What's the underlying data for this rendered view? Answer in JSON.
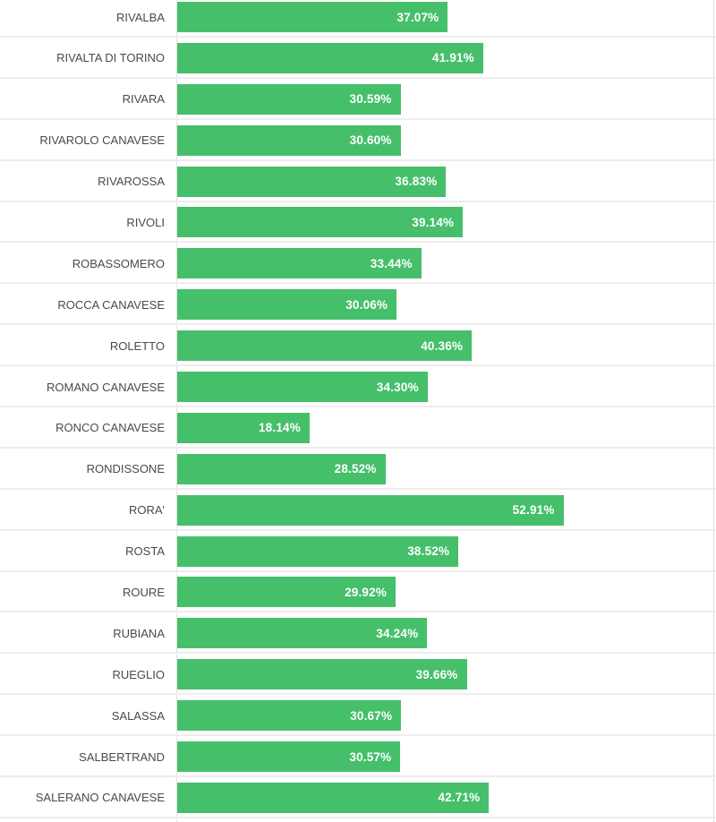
{
  "chart_data": {
    "type": "bar",
    "orientation": "horizontal",
    "title": "",
    "xlabel": "",
    "ylabel": "",
    "legend": "none",
    "grid": "row-separators",
    "xmax_estimate": 73.8,
    "bar_color": "#46BF6B",
    "value_label_color": "#ffffff",
    "category_label_color": "#4a4a4a",
    "separator_color": "#ededed",
    "categories": [
      "RIVALBA",
      "RIVALTA DI TORINO",
      "RIVARA",
      "RIVAROLO CANAVESE",
      "RIVAROSSA",
      "RIVOLI",
      "ROBASSOMERO",
      "ROCCA CANAVESE",
      "ROLETTO",
      "ROMANO CANAVESE",
      "RONCO CANAVESE",
      "RONDISSONE",
      "RORA'",
      "ROSTA",
      "ROURE",
      "RUBIANA",
      "RUEGLIO",
      "SALASSA",
      "SALBERTRAND",
      "SALERANO CANAVESE"
    ],
    "values": [
      37.07,
      41.91,
      30.59,
      30.6,
      36.83,
      39.14,
      33.44,
      30.06,
      40.36,
      34.3,
      18.14,
      28.52,
      52.91,
      38.52,
      29.92,
      34.24,
      39.66,
      30.67,
      30.57,
      42.71
    ],
    "value_labels": [
      "37.07%",
      "41.91%",
      "30.59%",
      "30.60%",
      "36.83%",
      "39.14%",
      "33.44%",
      "30.06%",
      "40.36%",
      "34.30%",
      "18.14%",
      "28.52%",
      "52.91%",
      "38.52%",
      "29.92%",
      "34.24%",
      "39.66%",
      "30.67%",
      "30.57%",
      "42.71%"
    ]
  }
}
